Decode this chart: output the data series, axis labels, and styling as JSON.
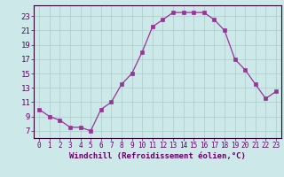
{
  "x": [
    0,
    1,
    2,
    3,
    4,
    5,
    6,
    7,
    8,
    9,
    10,
    11,
    12,
    13,
    14,
    15,
    16,
    17,
    18,
    19,
    20,
    21,
    22,
    23
  ],
  "y": [
    10.0,
    9.0,
    8.5,
    7.5,
    7.5,
    7.0,
    10.0,
    11.0,
    13.5,
    15.0,
    18.0,
    21.5,
    22.5,
    23.5,
    23.5,
    23.5,
    23.5,
    22.5,
    21.0,
    17.0,
    15.5,
    13.5,
    11.5,
    12.5
  ],
  "line_color": "#993399",
  "marker_color": "#993399",
  "bg_color": "#cce8e8",
  "grid_color": "#aacccc",
  "axis_color": "#330033",
  "tick_color": "#660066",
  "xlabel": "Windchill (Refroidissement éolien,°C)",
  "ylabel_ticks": [
    7,
    9,
    11,
    13,
    15,
    17,
    19,
    21,
    23
  ],
  "xlim": [
    -0.5,
    23.5
  ],
  "ylim": [
    6.0,
    24.5
  ],
  "xticks": [
    0,
    1,
    2,
    3,
    4,
    5,
    6,
    7,
    8,
    9,
    10,
    11,
    12,
    13,
    14,
    15,
    16,
    17,
    18,
    19,
    20,
    21,
    22,
    23
  ],
  "label_fontsize": 6.5,
  "tick_fontsize": 6.5,
  "xtick_fontsize": 5.5
}
